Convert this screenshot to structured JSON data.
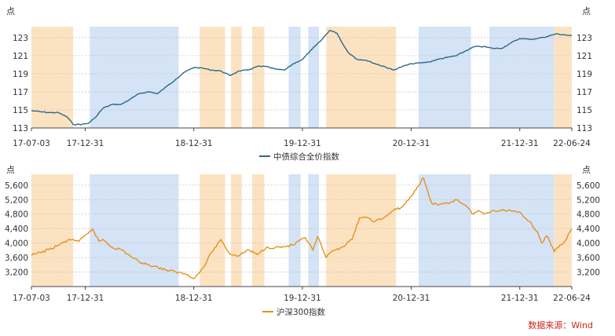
{
  "source_note": "数据来源：Wind",
  "colors": {
    "band_orange": "#fbe3c2",
    "band_blue": "#d4e3f6",
    "bond_line": "#2d6886",
    "equity_line": "#e6911c",
    "source_text": "#d1201d"
  },
  "chart_data": [
    {
      "type": "line",
      "title": "",
      "unit_label_left": "点",
      "unit_label_right": "点",
      "x_tick_labels": [
        "17-07-03",
        "17-12-31",
        "18-12-31",
        "19-12-31",
        "20-12-31",
        "21-12-31",
        "22-06-24"
      ],
      "x_tick_dates": [
        "2017-07-03",
        "2017-12-31",
        "2018-12-31",
        "2019-12-31",
        "2020-12-31",
        "2021-12-31",
        "2022-06-24"
      ],
      "x_range": [
        "2017-07-03",
        "2022-06-24"
      ],
      "ylim": [
        113,
        124.2
      ],
      "y_ticks": [
        113,
        115,
        117,
        119,
        121,
        123
      ],
      "grid": true,
      "legend_position": "bottom-center",
      "background_bands": [
        {
          "start": "2017-07-03",
          "end": "2017-11-20",
          "color": "orange"
        },
        {
          "start": "2018-01-15",
          "end": "2018-11-10",
          "color": "blue"
        },
        {
          "start": "2019-01-20",
          "end": "2019-04-15",
          "color": "orange"
        },
        {
          "start": "2019-05-05",
          "end": "2019-06-10",
          "color": "orange"
        },
        {
          "start": "2019-07-15",
          "end": "2019-08-25",
          "color": "orange"
        },
        {
          "start": "2019-11-15",
          "end": "2019-12-25",
          "color": "blue"
        },
        {
          "start": "2020-01-20",
          "end": "2020-02-25",
          "color": "blue"
        },
        {
          "start": "2020-03-20",
          "end": "2020-11-10",
          "color": "orange"
        },
        {
          "start": "2021-01-25",
          "end": "2021-07-20",
          "color": "blue"
        },
        {
          "start": "2021-09-20",
          "end": "2022-01-15",
          "color": "blue"
        },
        {
          "start": "2022-01-15",
          "end": "2022-04-25",
          "color": "blue"
        },
        {
          "start": "2022-04-25",
          "end": "2022-06-24",
          "color": "orange"
        }
      ],
      "series": [
        {
          "name": "中债综合全价指数",
          "color": "#2d6886",
          "points": [
            [
              "2017-07-03",
              114.9
            ],
            [
              "2017-08-01",
              114.8
            ],
            [
              "2017-09-01",
              114.7
            ],
            [
              "2017-10-01",
              114.7
            ],
            [
              "2017-11-01",
              114.2
            ],
            [
              "2017-11-20",
              113.4
            ],
            [
              "2017-12-20",
              113.4
            ],
            [
              "2018-01-10",
              113.5
            ],
            [
              "2018-02-01",
              114.1
            ],
            [
              "2018-03-01",
              115.2
            ],
            [
              "2018-04-01",
              115.6
            ],
            [
              "2018-05-01",
              115.6
            ],
            [
              "2018-06-01",
              116.2
            ],
            [
              "2018-07-01",
              116.8
            ],
            [
              "2018-08-01",
              117.0
            ],
            [
              "2018-09-01",
              116.8
            ],
            [
              "2018-10-01",
              117.6
            ],
            [
              "2018-11-01",
              118.4
            ],
            [
              "2018-12-01",
              119.2
            ],
            [
              "2019-01-01",
              119.7
            ],
            [
              "2019-02-01",
              119.6
            ],
            [
              "2019-03-01",
              119.4
            ],
            [
              "2019-04-01",
              119.3
            ],
            [
              "2019-05-01",
              118.8
            ],
            [
              "2019-06-01",
              119.3
            ],
            [
              "2019-07-01",
              119.4
            ],
            [
              "2019-08-01",
              119.8
            ],
            [
              "2019-09-01",
              119.8
            ],
            [
              "2019-10-01",
              119.5
            ],
            [
              "2019-11-01",
              119.4
            ],
            [
              "2019-12-01",
              120.1
            ],
            [
              "2020-01-01",
              120.6
            ],
            [
              "2020-02-01",
              121.7
            ],
            [
              "2020-03-01",
              122.6
            ],
            [
              "2020-04-01",
              123.8
            ],
            [
              "2020-04-25",
              123.5
            ],
            [
              "2020-05-15",
              122.3
            ],
            [
              "2020-06-01",
              121.4
            ],
            [
              "2020-07-01",
              120.6
            ],
            [
              "2020-08-01",
              120.5
            ],
            [
              "2020-09-01",
              120.1
            ],
            [
              "2020-10-01",
              119.8
            ],
            [
              "2020-11-01",
              119.4
            ],
            [
              "2020-12-01",
              119.8
            ],
            [
              "2021-01-01",
              120.1
            ],
            [
              "2021-02-01",
              120.2
            ],
            [
              "2021-03-01",
              120.3
            ],
            [
              "2021-04-01",
              120.6
            ],
            [
              "2021-05-01",
              120.8
            ],
            [
              "2021-06-01",
              121.0
            ],
            [
              "2021-07-01",
              121.5
            ],
            [
              "2021-08-01",
              122.0
            ],
            [
              "2021-09-01",
              122.0
            ],
            [
              "2021-10-01",
              121.8
            ],
            [
              "2021-11-01",
              121.8
            ],
            [
              "2021-12-01",
              122.4
            ],
            [
              "2022-01-01",
              122.9
            ],
            [
              "2022-02-01",
              122.8
            ],
            [
              "2022-03-01",
              122.9
            ],
            [
              "2022-04-01",
              123.1
            ],
            [
              "2022-05-01",
              123.4
            ],
            [
              "2022-06-01",
              123.3
            ],
            [
              "2022-06-24",
              123.2
            ]
          ]
        }
      ]
    },
    {
      "type": "line",
      "title": "",
      "unit_label_left": "点",
      "unit_label_right": "点",
      "x_tick_labels": [
        "17-07-03",
        "17-12-31",
        "18-12-31",
        "19-12-31",
        "20-12-31",
        "21-12-31",
        "22-06-24"
      ],
      "x_tick_dates": [
        "2017-07-03",
        "2017-12-31",
        "2018-12-31",
        "2019-12-31",
        "2020-12-31",
        "2021-12-31",
        "2022-06-24"
      ],
      "x_range": [
        "2017-07-03",
        "2022-06-24"
      ],
      "ylim": [
        2800,
        5900
      ],
      "y_ticks": [
        3200,
        3600,
        4000,
        4400,
        4800,
        5200,
        5600
      ],
      "y_tick_labels": [
        "3,200",
        "3,600",
        "4,000",
        "4,400",
        "4,800",
        "5,200",
        "5,600"
      ],
      "grid": true,
      "legend_position": "bottom-center",
      "background_bands": [
        {
          "start": "2017-07-03",
          "end": "2017-11-20",
          "color": "orange"
        },
        {
          "start": "2018-01-15",
          "end": "2018-11-10",
          "color": "blue"
        },
        {
          "start": "2019-01-20",
          "end": "2019-04-15",
          "color": "orange"
        },
        {
          "start": "2019-05-05",
          "end": "2019-06-10",
          "color": "orange"
        },
        {
          "start": "2019-07-15",
          "end": "2019-08-25",
          "color": "orange"
        },
        {
          "start": "2019-11-15",
          "end": "2019-12-25",
          "color": "blue"
        },
        {
          "start": "2020-01-20",
          "end": "2020-02-25",
          "color": "blue"
        },
        {
          "start": "2020-03-20",
          "end": "2020-11-10",
          "color": "orange"
        },
        {
          "start": "2021-01-25",
          "end": "2021-07-20",
          "color": "blue"
        },
        {
          "start": "2021-09-20",
          "end": "2022-01-15",
          "color": "blue"
        },
        {
          "start": "2022-01-15",
          "end": "2022-04-25",
          "color": "blue"
        },
        {
          "start": "2022-04-25",
          "end": "2022-06-24",
          "color": "orange"
        }
      ],
      "series": [
        {
          "name": "沪深300指数",
          "color": "#e6911c",
          "points": [
            [
              "2017-07-03",
              3660
            ],
            [
              "2017-08-01",
              3740
            ],
            [
              "2017-09-01",
              3820
            ],
            [
              "2017-10-01",
              3940
            ],
            [
              "2017-11-01",
              4070
            ],
            [
              "2017-11-20",
              4100
            ],
            [
              "2017-12-10",
              4050
            ],
            [
              "2018-01-10",
              4270
            ],
            [
              "2018-01-25",
              4390
            ],
            [
              "2018-02-15",
              4050
            ],
            [
              "2018-03-01",
              4100
            ],
            [
              "2018-04-01",
              3880
            ],
            [
              "2018-05-01",
              3820
            ],
            [
              "2018-06-01",
              3640
            ],
            [
              "2018-07-01",
              3480
            ],
            [
              "2018-08-01",
              3400
            ],
            [
              "2018-09-01",
              3330
            ],
            [
              "2018-10-01",
              3250
            ],
            [
              "2018-11-01",
              3200
            ],
            [
              "2018-12-01",
              3160
            ],
            [
              "2019-01-03",
              3030
            ],
            [
              "2019-02-01",
              3320
            ],
            [
              "2019-03-01",
              3750
            ],
            [
              "2019-04-01",
              4100
            ],
            [
              "2019-05-01",
              3700
            ],
            [
              "2019-06-01",
              3650
            ],
            [
              "2019-07-01",
              3820
            ],
            [
              "2019-08-01",
              3680
            ],
            [
              "2019-09-01",
              3880
            ],
            [
              "2019-10-01",
              3880
            ],
            [
              "2019-11-01",
              3900
            ],
            [
              "2019-12-01",
              3950
            ],
            [
              "2020-01-10",
              4150
            ],
            [
              "2020-02-05",
              3800
            ],
            [
              "2020-02-20",
              4180
            ],
            [
              "2020-03-20",
              3600
            ],
            [
              "2020-04-15",
              3800
            ],
            [
              "2020-05-15",
              3900
            ],
            [
              "2020-06-15",
              4100
            ],
            [
              "2020-07-10",
              4700
            ],
            [
              "2020-08-01",
              4700
            ],
            [
              "2020-09-01",
              4600
            ],
            [
              "2020-10-01",
              4700
            ],
            [
              "2020-11-01",
              4900
            ],
            [
              "2020-12-01",
              5000
            ],
            [
              "2021-01-01",
              5300
            ],
            [
              "2021-02-10",
              5800
            ],
            [
              "2021-03-10",
              5100
            ],
            [
              "2021-04-01",
              5050
            ],
            [
              "2021-05-01",
              5100
            ],
            [
              "2021-06-01",
              5200
            ],
            [
              "2021-07-01",
              5050
            ],
            [
              "2021-07-28",
              4800
            ],
            [
              "2021-08-15",
              4900
            ],
            [
              "2021-09-01",
              4800
            ],
            [
              "2021-10-01",
              4900
            ],
            [
              "2021-11-01",
              4900
            ],
            [
              "2021-12-01",
              4900
            ],
            [
              "2022-01-01",
              4850
            ],
            [
              "2022-02-01",
              4600
            ],
            [
              "2022-03-01",
              4300
            ],
            [
              "2022-03-15",
              4000
            ],
            [
              "2022-04-01",
              4200
            ],
            [
              "2022-04-26",
              3760
            ],
            [
              "2022-05-15",
              3950
            ],
            [
              "2022-06-01",
              4050
            ],
            [
              "2022-06-24",
              4400
            ]
          ]
        }
      ]
    }
  ]
}
